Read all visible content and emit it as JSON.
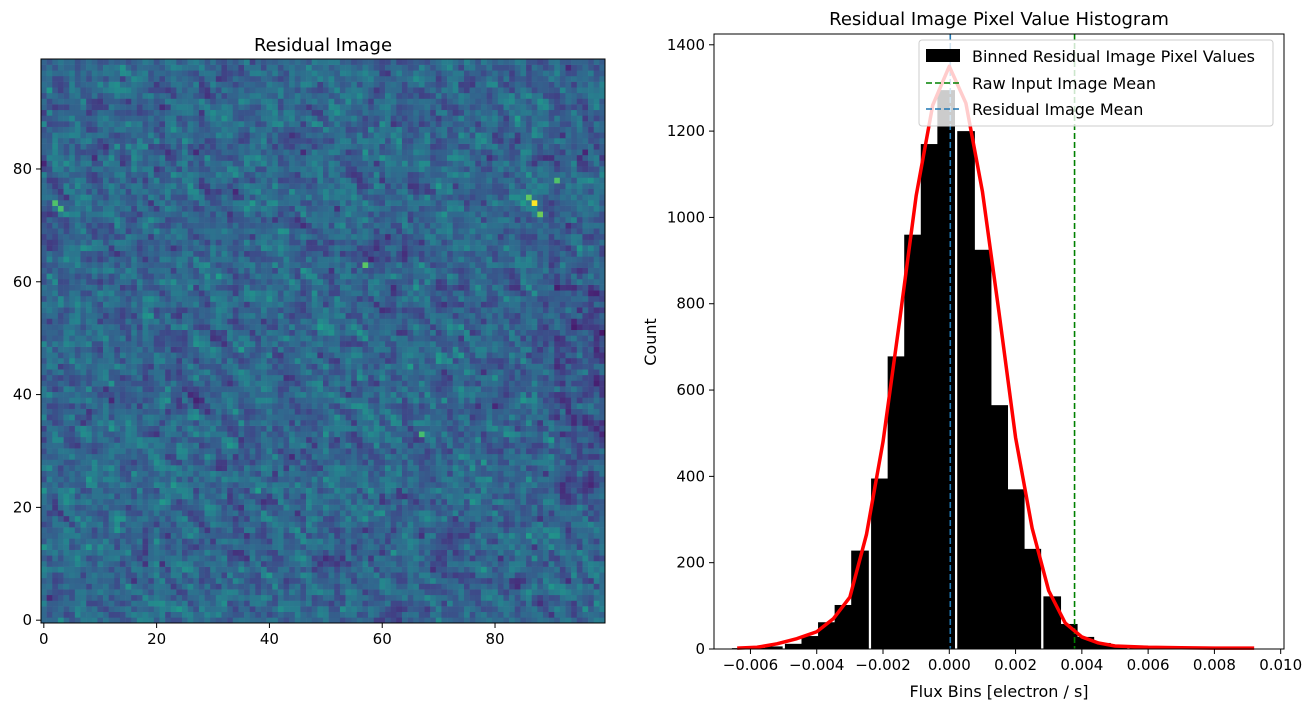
{
  "chart_data": [
    {
      "type": "heatmap",
      "title": "Residual Image",
      "xlabel": "",
      "ylabel": "",
      "xlim": [
        -0.5,
        99.5
      ],
      "ylim": [
        -0.5,
        99.5
      ],
      "grid_size": [
        100,
        100
      ],
      "colormap": "viridis",
      "x_ticks": [
        0,
        20,
        40,
        60,
        80
      ],
      "y_ticks": [
        0,
        20,
        40,
        60,
        80
      ],
      "hot_pixels": [
        {
          "x": 87,
          "y": 74,
          "level": 1.0
        },
        {
          "x": 86,
          "y": 75,
          "level": 0.75
        },
        {
          "x": 88,
          "y": 72,
          "level": 0.78
        },
        {
          "x": 2,
          "y": 74,
          "level": 0.72
        },
        {
          "x": 3,
          "y": 73,
          "level": 0.7
        },
        {
          "x": 57,
          "y": 63,
          "level": 0.74
        },
        {
          "x": 91,
          "y": 78,
          "level": 0.72
        },
        {
          "x": 67,
          "y": 33,
          "level": 0.7
        }
      ]
    },
    {
      "type": "bar",
      "title": "Residual Image Pixel Value Histogram",
      "xlabel": "Flux Bins [electron / s]",
      "ylabel": "Count",
      "xlim": [
        -0.0071,
        0.0101
      ],
      "ylim": [
        0,
        1425
      ],
      "x_ticks": [
        -0.006,
        -0.004,
        -0.002,
        0.0,
        0.002,
        0.004,
        0.006,
        0.008,
        0.01
      ],
      "x_tick_labels": [
        "−0.006",
        "−0.004",
        "−0.002",
        "0.000",
        "0.002",
        "0.004",
        "0.006",
        "0.008",
        "0.010"
      ],
      "y_ticks": [
        0,
        200,
        400,
        600,
        800,
        1000,
        1200,
        1400
      ],
      "bin_width": 0.00052,
      "histogram": {
        "name": "Binned Residual Image Pixel Values",
        "color": "#000000",
        "bin_centers": [
          -0.0063,
          -0.0058,
          -0.0053,
          -0.0047,
          -0.0042,
          -0.0037,
          -0.0032,
          -0.0027,
          -0.0021,
          -0.0016,
          -0.0011,
          -0.0006,
          -0.0001,
          0.0005,
          0.001,
          0.0015,
          0.002,
          0.0025,
          0.0031,
          0.0036,
          0.0041,
          0.0046,
          0.0051,
          0.0057,
          0.0062,
          0.0067,
          0.0072,
          0.0077,
          0.0083,
          0.0088
        ],
        "values": [
          2,
          3,
          6,
          12,
          30,
          62,
          102,
          228,
          395,
          678,
          960,
          1170,
          1295,
          1200,
          925,
          565,
          370,
          232,
          122,
          58,
          28,
          14,
          6,
          3,
          2,
          1,
          1,
          1,
          0,
          1
        ]
      },
      "fit_line": {
        "color": "#ff0000",
        "x": [
          -0.0064,
          -0.0058,
          -0.0052,
          -0.0046,
          -0.004,
          -0.0035,
          -0.003,
          -0.0025,
          -0.002,
          -0.0015,
          -0.001,
          -0.0005,
          0.0,
          0.0005,
          0.001,
          0.0015,
          0.002,
          0.0025,
          0.003,
          0.0035,
          0.004,
          0.0045,
          0.005,
          0.006,
          0.007,
          0.008,
          0.0092
        ],
        "y": [
          2,
          4,
          12,
          24,
          40,
          70,
          120,
          265,
          480,
          760,
          1050,
          1260,
          1350,
          1265,
          1060,
          780,
          490,
          280,
          135,
          60,
          28,
          14,
          7,
          4,
          3,
          2,
          2
        ]
      },
      "vlines": [
        {
          "name": "Raw Input Image Mean",
          "x": 0.00378,
          "color": "#008000",
          "style": "dashed"
        },
        {
          "name": "Residual Image Mean",
          "x": 3e-05,
          "color": "#1f77b4",
          "style": "dashed"
        }
      ],
      "legend": {
        "position": "top-right",
        "entries": [
          "Binned Residual Image Pixel Values",
          "Raw Input Image Mean",
          "Residual Image Mean"
        ]
      }
    }
  ]
}
